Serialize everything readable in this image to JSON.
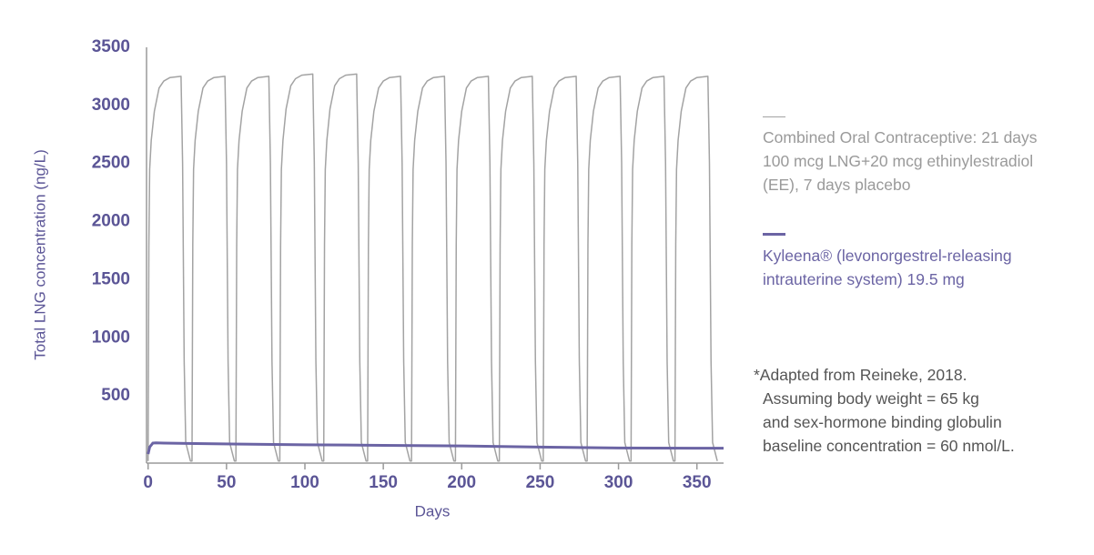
{
  "chart_data": {
    "type": "line",
    "x_label": "Days",
    "y_label": "Total LNG concentration (ng/L)",
    "xlim": [
      -1,
      367
    ],
    "xticks": [
      0,
      50,
      100,
      150,
      200,
      250,
      300,
      350
    ],
    "ylim": [
      -78,
      3500
    ],
    "yticks": [
      500,
      1000,
      1500,
      2000,
      2500,
      3000,
      3500
    ],
    "grid": false,
    "series": [
      {
        "name": "Combined Oral Contraceptive: 21 days 100 mcg LNG+20 mcg ethinylestradiol (EE), 7 days placebo",
        "color": "#a3a3a3",
        "width": 1.5,
        "x": [
          0,
          0.5,
          1,
          2,
          4,
          7,
          10,
          14,
          21,
          22,
          23,
          24,
          27,
          28,
          28.5,
          29,
          30,
          32,
          35,
          38,
          42,
          49,
          50,
          51,
          52,
          55,
          56,
          56.5,
          57,
          58,
          60,
          63,
          66,
          70,
          77,
          78,
          79,
          80,
          83,
          84,
          84.5,
          85,
          86,
          88,
          91,
          94,
          98,
          105,
          106,
          107,
          108,
          111,
          112,
          112.5,
          113,
          114,
          116,
          119,
          122,
          126,
          133,
          134,
          135,
          136,
          139,
          140,
          140.5,
          141,
          142,
          144,
          147,
          150,
          154,
          161,
          162,
          163,
          164,
          167,
          168,
          168.5,
          169,
          170,
          172,
          175,
          178,
          182,
          189,
          190,
          191,
          192,
          195,
          196,
          196.5,
          197,
          198,
          200,
          203,
          206,
          210,
          217,
          218,
          219,
          220,
          223,
          224,
          224.5,
          225,
          226,
          228,
          231,
          234,
          238,
          245,
          246,
          247,
          248,
          251,
          252,
          252.5,
          253,
          254,
          256,
          259,
          262,
          266,
          273,
          274,
          275,
          276,
          279,
          280,
          280.5,
          281,
          282,
          284,
          287,
          290,
          294,
          301,
          302,
          303,
          304,
          307,
          308,
          308.5,
          309,
          310,
          312,
          315,
          318,
          322,
          329,
          330,
          331,
          332,
          335,
          336,
          336.5,
          337,
          338,
          340,
          343,
          346,
          350,
          357,
          358,
          359,
          360,
          363
        ],
        "values": [
          -60,
          1800,
          2450,
          2700,
          2950,
          3150,
          3210,
          3240,
          3250,
          2500,
          800,
          100,
          -60,
          -60,
          1800,
          2450,
          2700,
          2950,
          3150,
          3210,
          3240,
          3250,
          2500,
          800,
          100,
          -60,
          -60,
          1800,
          2450,
          2700,
          2950,
          3150,
          3210,
          3240,
          3250,
          2500,
          800,
          100,
          -60,
          -60,
          1800,
          2450,
          2700,
          2970,
          3170,
          3230,
          3260,
          3270,
          2500,
          800,
          100,
          -60,
          -60,
          1800,
          2450,
          2700,
          2970,
          3170,
          3230,
          3260,
          3270,
          2500,
          800,
          100,
          -60,
          -60,
          1800,
          2450,
          2700,
          2950,
          3150,
          3210,
          3240,
          3250,
          2500,
          800,
          100,
          -60,
          -60,
          1800,
          2450,
          2700,
          2950,
          3150,
          3210,
          3240,
          3250,
          2500,
          800,
          100,
          -60,
          -60,
          1800,
          2450,
          2700,
          2950,
          3150,
          3210,
          3240,
          3250,
          2500,
          800,
          100,
          -60,
          -60,
          1800,
          2450,
          2700,
          2950,
          3150,
          3210,
          3240,
          3250,
          2500,
          800,
          100,
          -60,
          -60,
          1800,
          2450,
          2700,
          2950,
          3150,
          3210,
          3240,
          3250,
          2500,
          800,
          100,
          -60,
          -60,
          1800,
          2450,
          2700,
          2950,
          3150,
          3210,
          3240,
          3250,
          2500,
          800,
          100,
          -60,
          -60,
          1800,
          2450,
          2700,
          2950,
          3150,
          3210,
          3240,
          3250,
          2500,
          800,
          100,
          -60,
          -60,
          1800,
          2450,
          2700,
          2950,
          3150,
          3210,
          3240,
          3250,
          2500,
          800,
          100,
          -60
        ]
      },
      {
        "name": "Kyleena® (levonorgestrel-releasing intrauterine system) 19.5 mg",
        "color": "#6b64a4",
        "width": 3,
        "x": [
          0,
          1,
          3,
          5,
          10,
          30,
          60,
          100,
          150,
          200,
          250,
          300,
          367
        ],
        "values": [
          0,
          60,
          94,
          96,
          94,
          90,
          85,
          80,
          75,
          70,
          60,
          52,
          50
        ]
      }
    ],
    "note": [
      "*Adapted from Reineke, 2018.",
      "Assuming body weight = 65 kg",
      "and sex-hormone binding globulin",
      "baseline concentration = 60 nmol/L."
    ]
  }
}
